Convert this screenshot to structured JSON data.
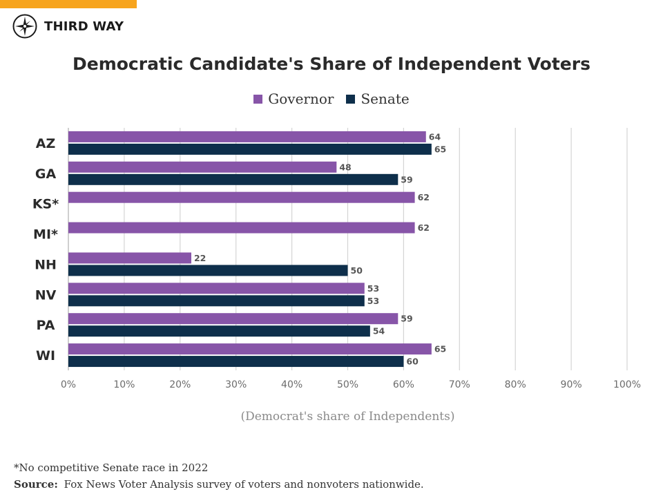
{
  "brand": {
    "name": "THIRD WAY",
    "accent_color": "#F7A41D",
    "logo_icon": "compass-star-icon"
  },
  "footnote": "*No competitive Senate race in 2022",
  "source": {
    "label": "Source:",
    "text": "Fox News Voter Analysis survey of voters and nonvoters nationwide."
  },
  "chart_data": {
    "type": "bar",
    "orientation": "horizontal",
    "title": "Democratic Candidate's Share of Independent Voters",
    "xlabel": "(Democrat's share of Independents)",
    "ylabel": "",
    "xlim": [
      0,
      100
    ],
    "x_ticks": [
      "0%",
      "10%",
      "20%",
      "30%",
      "40%",
      "50%",
      "60%",
      "70%",
      "80%",
      "90%",
      "100%"
    ],
    "grid": true,
    "legend_position": "top-center",
    "categories": [
      "AZ",
      "GA",
      "KS*",
      "MI*",
      "NH",
      "NV",
      "PA",
      "WI"
    ],
    "series": [
      {
        "name": "Governor",
        "color": "#8755A8",
        "values": [
          64,
          48,
          62,
          62,
          22,
          53,
          59,
          65
        ]
      },
      {
        "name": "Senate",
        "color": "#0E2F4B",
        "values": [
          65,
          59,
          null,
          null,
          50,
          53,
          54,
          60
        ]
      }
    ]
  }
}
